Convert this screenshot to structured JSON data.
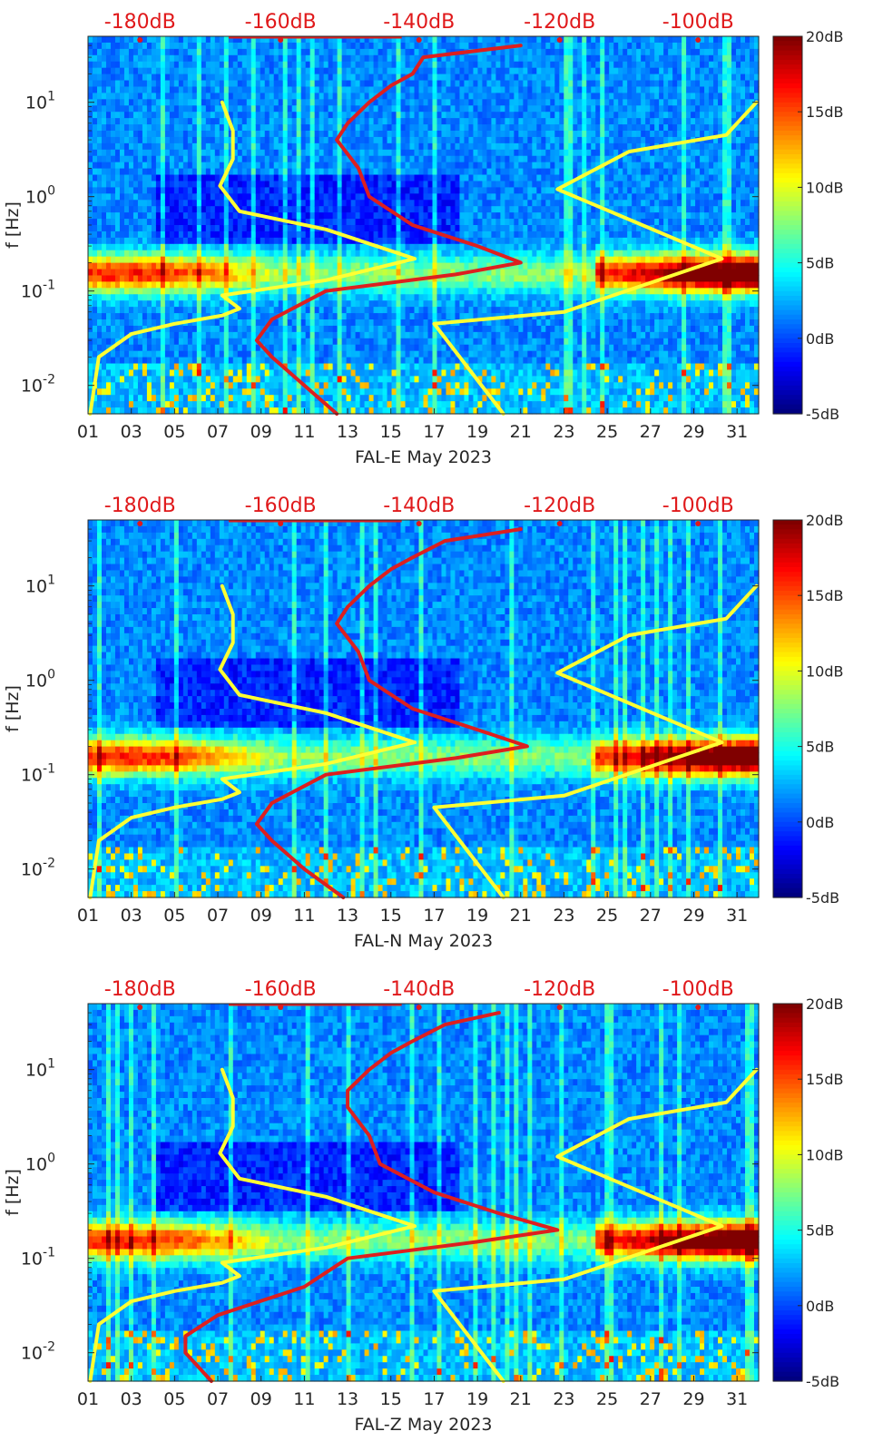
{
  "figure": {
    "ylabel": "f [Hz]",
    "top_axis_labels": [
      "-180dB",
      "-160dB",
      "-140dB",
      "-120dB",
      "-100dB"
    ],
    "colorbar_labels": [
      "20dB",
      "15dB",
      "10dB",
      "5dB",
      "0dB",
      "-5dB"
    ],
    "ytick_labels": [
      "10^1",
      "10^0",
      "10^-1",
      "10^-2"
    ]
  },
  "colors": {
    "yellow_line": "#ffff33",
    "red_line": "#dd1f1f",
    "top_label_color": "#e0191b"
  },
  "chart_data": [
    {
      "type": "heatmap",
      "title": "",
      "xlabel": "FAL-E May 2023",
      "ylabel": "f [Hz]",
      "x_tick_labels": [
        "01",
        "03",
        "05",
        "07",
        "09",
        "11",
        "13",
        "15",
        "17",
        "19",
        "21",
        "23",
        "25",
        "27",
        "29",
        "31"
      ],
      "xlim": [
        1,
        32
      ],
      "ylim_hz": [
        0.005,
        50
      ],
      "yscale": "log",
      "colorbar": {
        "min_db": -5,
        "max_db": 20,
        "colormap": "jet"
      },
      "top_axis": [
        "-180dB",
        "-160dB",
        "-140dB",
        "-120dB",
        "-100dB"
      ],
      "series": [
        {
          "color": "yellow",
          "points": [
            [
              1.1,
              0.005
            ],
            [
              1.5,
              0.02
            ],
            [
              3.0,
              0.035
            ],
            [
              5.0,
              0.045
            ],
            [
              7.2,
              0.055
            ],
            [
              8.0,
              0.065
            ],
            [
              7.2,
              0.09
            ],
            [
              12.0,
              0.13
            ],
            [
              16.1,
              0.22
            ],
            [
              12.0,
              0.45
            ],
            [
              8.0,
              0.7
            ],
            [
              7.1,
              1.3
            ],
            [
              7.7,
              2.5
            ],
            [
              7.7,
              5.0
            ],
            [
              7.2,
              10.0
            ]
          ]
        },
        {
          "color": "red",
          "points": [
            [
              12.5,
              0.005
            ],
            [
              11.0,
              0.01
            ],
            [
              9.5,
              0.02
            ],
            [
              8.8,
              0.03
            ],
            [
              9.5,
              0.05
            ],
            [
              12.0,
              0.1
            ],
            [
              18.0,
              0.15
            ],
            [
              21.0,
              0.2
            ],
            [
              19.0,
              0.3
            ],
            [
              16.0,
              0.5
            ],
            [
              14.0,
              1.0
            ],
            [
              13.5,
              2.0
            ],
            [
              12.5,
              4.0
            ],
            [
              13.0,
              6.0
            ],
            [
              14.0,
              10.0
            ],
            [
              15.0,
              15.0
            ],
            [
              16.0,
              20.0
            ],
            [
              16.5,
              30.0
            ],
            [
              21.0,
              40.0
            ]
          ]
        },
        {
          "color": "yellow",
          "points": [
            [
              20.2,
              0.005
            ],
            [
              17.0,
              0.045
            ],
            [
              23.0,
              0.06
            ],
            [
              30.3,
              0.22
            ],
            [
              22.7,
              1.2
            ],
            [
              26.0,
              3.0
            ],
            [
              30.5,
              4.5
            ],
            [
              31.9,
              10.0
            ]
          ]
        }
      ]
    },
    {
      "type": "heatmap",
      "title": "",
      "xlabel": "FAL-N May 2023",
      "ylabel": "f [Hz]",
      "x_tick_labels": [
        "01",
        "03",
        "05",
        "07",
        "09",
        "11",
        "13",
        "15",
        "17",
        "19",
        "21",
        "23",
        "25",
        "27",
        "29",
        "31"
      ],
      "xlim": [
        1,
        32
      ],
      "ylim_hz": [
        0.005,
        50
      ],
      "yscale": "log",
      "colorbar": {
        "min_db": -5,
        "max_db": 20,
        "colormap": "jet"
      },
      "top_axis": [
        "-180dB",
        "-160dB",
        "-140dB",
        "-120dB",
        "-100dB"
      ],
      "series": [
        {
          "color": "yellow",
          "points": [
            [
              1.1,
              0.005
            ],
            [
              1.5,
              0.02
            ],
            [
              3.0,
              0.035
            ],
            [
              5.0,
              0.045
            ],
            [
              7.2,
              0.055
            ],
            [
              8.0,
              0.065
            ],
            [
              7.2,
              0.09
            ],
            [
              12.0,
              0.13
            ],
            [
              16.1,
              0.22
            ],
            [
              12.0,
              0.45
            ],
            [
              8.0,
              0.7
            ],
            [
              7.1,
              1.3
            ],
            [
              7.7,
              2.5
            ],
            [
              7.7,
              5.0
            ],
            [
              7.2,
              10.0
            ]
          ]
        },
        {
          "color": "red",
          "points": [
            [
              12.8,
              0.005
            ],
            [
              11.0,
              0.01
            ],
            [
              9.5,
              0.02
            ],
            [
              8.8,
              0.03
            ],
            [
              9.5,
              0.05
            ],
            [
              12.0,
              0.1
            ],
            [
              18.0,
              0.15
            ],
            [
              21.3,
              0.2
            ],
            [
              19.0,
              0.3
            ],
            [
              16.0,
              0.5
            ],
            [
              14.0,
              1.0
            ],
            [
              13.5,
              2.0
            ],
            [
              12.5,
              4.0
            ],
            [
              13.0,
              6.0
            ],
            [
              14.0,
              10.0
            ],
            [
              15.0,
              15.0
            ],
            [
              16.0,
              20.0
            ],
            [
              17.5,
              30.0
            ],
            [
              21.0,
              40.0
            ]
          ]
        },
        {
          "color": "yellow",
          "points": [
            [
              20.2,
              0.005
            ],
            [
              17.0,
              0.045
            ],
            [
              23.0,
              0.06
            ],
            [
              30.3,
              0.22
            ],
            [
              22.7,
              1.2
            ],
            [
              26.0,
              3.0
            ],
            [
              30.5,
              4.5
            ],
            [
              31.9,
              10.0
            ]
          ]
        }
      ]
    },
    {
      "type": "heatmap",
      "title": "",
      "xlabel": "FAL-Z May 2023",
      "ylabel": "f [Hz]",
      "x_tick_labels": [
        "01",
        "03",
        "05",
        "07",
        "09",
        "11",
        "13",
        "15",
        "17",
        "19",
        "21",
        "23",
        "25",
        "27",
        "29",
        "31"
      ],
      "xlim": [
        1,
        32
      ],
      "ylim_hz": [
        0.005,
        50
      ],
      "yscale": "log",
      "colorbar": {
        "min_db": -5,
        "max_db": 20,
        "colormap": "jet"
      },
      "top_axis": [
        "-180dB",
        "-160dB",
        "-140dB",
        "-120dB",
        "-100dB"
      ],
      "series": [
        {
          "color": "yellow",
          "points": [
            [
              1.1,
              0.005
            ],
            [
              1.5,
              0.02
            ],
            [
              3.0,
              0.035
            ],
            [
              5.0,
              0.045
            ],
            [
              7.2,
              0.055
            ],
            [
              8.0,
              0.065
            ],
            [
              7.2,
              0.09
            ],
            [
              12.0,
              0.13
            ],
            [
              16.1,
              0.22
            ],
            [
              12.0,
              0.45
            ],
            [
              8.0,
              0.7
            ],
            [
              7.1,
              1.3
            ],
            [
              7.7,
              2.5
            ],
            [
              7.7,
              5.0
            ],
            [
              7.2,
              10.0
            ]
          ]
        },
        {
          "color": "red",
          "points": [
            [
              6.7,
              0.005
            ],
            [
              5.5,
              0.01
            ],
            [
              5.5,
              0.015
            ],
            [
              7.0,
              0.025
            ],
            [
              11.0,
              0.05
            ],
            [
              13.0,
              0.1
            ],
            [
              19.0,
              0.15
            ],
            [
              22.7,
              0.2
            ],
            [
              20.0,
              0.3
            ],
            [
              17.0,
              0.5
            ],
            [
              14.5,
              1.0
            ],
            [
              14.0,
              2.0
            ],
            [
              13.0,
              4.0
            ],
            [
              13.0,
              6.0
            ],
            [
              14.0,
              10.0
            ],
            [
              15.0,
              15.0
            ],
            [
              16.0,
              20.0
            ],
            [
              17.5,
              30.0
            ],
            [
              20.0,
              40.0
            ]
          ]
        },
        {
          "color": "yellow",
          "points": [
            [
              20.2,
              0.005
            ],
            [
              17.0,
              0.045
            ],
            [
              23.0,
              0.06
            ],
            [
              30.3,
              0.22
            ],
            [
              22.7,
              1.2
            ],
            [
              26.0,
              3.0
            ],
            [
              30.5,
              4.5
            ],
            [
              31.9,
              10.0
            ]
          ]
        }
      ]
    }
  ]
}
